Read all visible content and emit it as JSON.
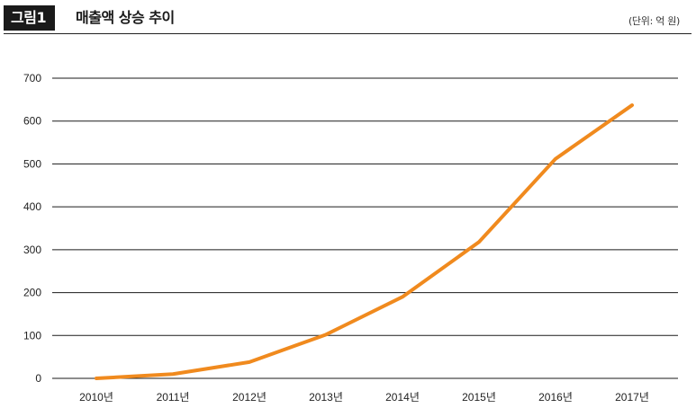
{
  "header": {
    "figure_tag": "그림1",
    "title": "매출액 상승 추이",
    "unit": "(단위: 억 원)"
  },
  "colors": {
    "line": "#F08A1E",
    "grid": "#1a1a1a",
    "header_tag_bg": "#1a1a1a"
  },
  "chart_data": {
    "type": "line",
    "categories": [
      "2010년",
      "2011년",
      "2012년",
      "2013년",
      "2014년",
      "2015년",
      "2016년",
      "2017년"
    ],
    "series": [
      {
        "values": [
          0,
          10,
          38,
          102,
          190,
          318,
          512,
          637
        ]
      }
    ],
    "yticks": [
      0,
      100,
      200,
      300,
      400,
      500,
      600,
      700
    ],
    "ylim": [
      0,
      700
    ],
    "grid": "horizontal",
    "legend": "none"
  }
}
